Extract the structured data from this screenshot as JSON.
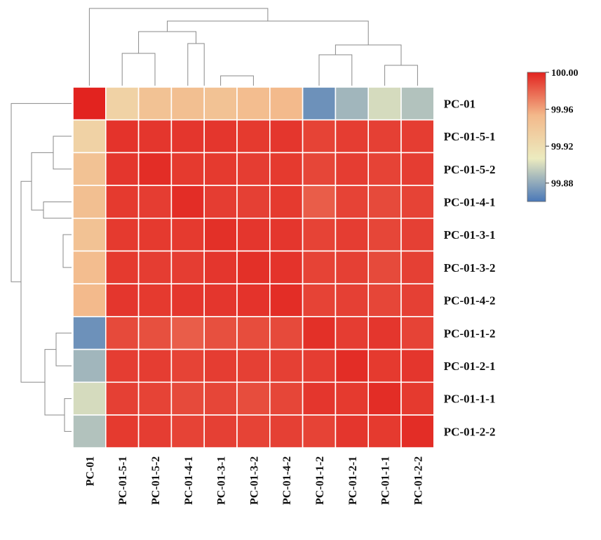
{
  "chart_data": {
    "type": "heatmap",
    "labels": [
      "PC-01",
      "PC-01-5-1",
      "PC-01-5-2",
      "PC-01-4-1",
      "PC-01-3-1",
      "PC-01-3-2",
      "PC-01-4-2",
      "PC-01-1-2",
      "PC-01-2-1",
      "PC-01-1-1",
      "PC-01-2-2"
    ],
    "matrix": [
      [
        100.0,
        99.93,
        99.945,
        99.948,
        99.945,
        99.95,
        99.952,
        99.87,
        99.885,
        99.9,
        99.89
      ],
      [
        99.93,
        99.995,
        99.994,
        99.994,
        99.994,
        99.993,
        99.994,
        99.99,
        99.992,
        99.991,
        99.992
      ],
      [
        99.945,
        99.994,
        99.997,
        99.993,
        99.993,
        99.992,
        99.993,
        99.989,
        99.992,
        99.99,
        99.992
      ],
      [
        99.948,
        99.993,
        99.992,
        99.997,
        99.992,
        99.991,
        99.993,
        99.982,
        99.99,
        99.988,
        99.99
      ],
      [
        99.945,
        99.993,
        99.993,
        99.993,
        99.996,
        99.994,
        99.994,
        99.99,
        99.992,
        99.989,
        99.991
      ],
      [
        99.95,
        99.993,
        99.992,
        99.992,
        99.994,
        99.996,
        99.995,
        99.99,
        99.991,
        99.988,
        99.991
      ],
      [
        99.952,
        99.994,
        99.993,
        99.994,
        99.994,
        99.995,
        99.997,
        99.99,
        99.991,
        99.989,
        99.991
      ],
      [
        99.87,
        99.988,
        99.986,
        99.982,
        99.986,
        99.987,
        99.988,
        99.996,
        99.992,
        99.994,
        99.99
      ],
      [
        99.885,
        99.992,
        99.992,
        99.99,
        99.992,
        99.991,
        99.991,
        99.992,
        99.997,
        99.993,
        99.994
      ],
      [
        99.9,
        99.991,
        99.99,
        99.988,
        99.989,
        99.987,
        99.989,
        99.994,
        99.993,
        99.997,
        99.993
      ],
      [
        99.89,
        99.993,
        99.992,
        99.99,
        99.991,
        99.99,
        99.991,
        99.99,
        99.994,
        99.993,
        99.997
      ]
    ],
    "colorbar": {
      "min": 99.86,
      "max": 100.0,
      "ticks": [
        100.0,
        99.96,
        99.92,
        99.88
      ],
      "tick_labels": [
        "100.00",
        "99.96",
        "99.92",
        "99.88"
      ],
      "colors": [
        "#4a78b8",
        "#ecebbf",
        "#f3b98b",
        "#e2231f"
      ]
    },
    "dendrogram": "hierarchical clustering shown on top (columns) and left (rows)",
    "grid_line_color": "#ffffff"
  }
}
